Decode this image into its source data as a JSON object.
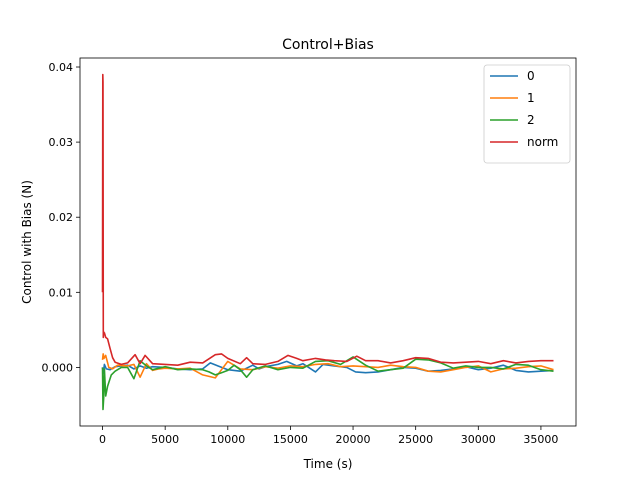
{
  "chart_data": {
    "type": "line",
    "title": "Control+Bias",
    "xlabel": "Time (s)",
    "ylabel": "Control with Bias (N)",
    "xlim": [
      -1800,
      37800
    ],
    "ylim": [
      -0.0078,
      0.0412
    ],
    "xticks": [
      0,
      5000,
      10000,
      15000,
      20000,
      25000,
      30000,
      35000
    ],
    "xtick_labels": [
      "0",
      "5000",
      "10000",
      "15000",
      "20000",
      "25000",
      "30000",
      "35000"
    ],
    "yticks": [
      0.0,
      0.01,
      0.02,
      0.03,
      0.04
    ],
    "ytick_labels": [
      "0.000",
      "0.01",
      "0.02",
      "0.03",
      "0.04"
    ],
    "grid": false,
    "legend": "top-right",
    "series": [
      {
        "name": "0",
        "color": "#1f77b4",
        "x": [
          0,
          60,
          150,
          300,
          600,
          1000,
          1500,
          2000,
          2500,
          3000,
          3500,
          4000,
          5000,
          6000,
          7000,
          8000,
          8600,
          9200,
          10000,
          11000,
          12000,
          12500,
          13000,
          14000,
          14700,
          15500,
          16000,
          17000,
          17600,
          18500,
          19500,
          20200,
          21000,
          22000,
          23000,
          24000,
          25000,
          26000,
          27000,
          28000,
          29000,
          30000,
          31000,
          32000,
          33000,
          34000,
          35000,
          36000
        ],
        "y": [
          0.0,
          -0.0008,
          0.0004,
          -0.0002,
          -0.0003,
          0.0001,
          0.0002,
          0.0003,
          -0.0002,
          0.0002,
          -0.0001,
          0.0001,
          0.0,
          -0.0002,
          -0.0003,
          -0.0002,
          0.0006,
          0.0002,
          -0.0003,
          -0.0005,
          0.0003,
          -0.0002,
          0.0001,
          0.0004,
          0.0008,
          0.0002,
          0.0005,
          -0.0006,
          0.0004,
          0.0002,
          0.0,
          -0.0006,
          -0.0007,
          -0.0006,
          -0.0003,
          0.0,
          -0.0001,
          -0.0005,
          -0.0004,
          -0.0002,
          0.0001,
          -0.0003,
          -0.0001,
          0.0003,
          -0.0004,
          -0.0006,
          -0.0005,
          -0.0004
        ]
      },
      {
        "name": "1",
        "color": "#ff7f0e",
        "x": [
          0,
          50,
          120,
          250,
          500,
          800,
          1200,
          2000,
          2500,
          3000,
          3500,
          4000,
          4500,
          5000,
          6000,
          7000,
          8000,
          9000,
          9500,
          10000,
          11000,
          12000,
          13000,
          14000,
          15000,
          16000,
          17000,
          18000,
          19000,
          20000,
          21000,
          22000,
          23000,
          24000,
          25000,
          26000,
          27000,
          28000,
          29000,
          30000,
          31000,
          32000,
          33000,
          34000,
          35000,
          36000
        ],
        "y": [
          0.001,
          0.0018,
          0.0012,
          0.0016,
          0.0,
          -0.0002,
          0.0003,
          0.0002,
          0.0004,
          -0.0013,
          0.0005,
          -0.0004,
          -0.0002,
          -0.0001,
          -0.0002,
          -0.0001,
          -0.001,
          -0.0014,
          -0.0003,
          0.0008,
          -0.0002,
          -0.0003,
          0.0001,
          -0.0001,
          0.0002,
          0.0001,
          0.0004,
          0.0005,
          0.0001,
          0.0002,
          0.0001,
          0.0,
          0.0003,
          0.0001,
          0.0,
          -0.0005,
          -0.0006,
          -0.0003,
          0.0,
          0.0002,
          -0.0006,
          -0.0002,
          -0.0001,
          0.0001,
          0.0002,
          -0.0003
        ]
      },
      {
        "name": "2",
        "color": "#2ca02c",
        "x": [
          0,
          40,
          90,
          150,
          250,
          400,
          700,
          1000,
          1500,
          2000,
          2500,
          3000,
          3500,
          4000,
          5000,
          6000,
          7000,
          8000,
          8500,
          9000,
          9500,
          10000,
          10500,
          11000,
          11500,
          12000,
          13000,
          14000,
          15000,
          16000,
          17000,
          18000,
          19000,
          20000,
          21000,
          22000,
          23000,
          24000,
          25000,
          26000,
          27000,
          28000,
          29000,
          30000,
          31000,
          32000,
          33000,
          34000,
          35000,
          36000
        ],
        "y": [
          0.0,
          -0.0056,
          -0.004,
          -0.0002,
          -0.0038,
          -0.0025,
          -0.001,
          -0.0005,
          0.0,
          0.0,
          -0.0015,
          0.0009,
          0.0002,
          -0.0003,
          0.0001,
          -0.0003,
          -0.0002,
          -0.0003,
          -0.0006,
          -0.001,
          -0.0007,
          -0.0004,
          0.0003,
          -0.0003,
          -0.0013,
          -0.0003,
          0.0002,
          -0.0003,
          0.0,
          -0.0001,
          0.0008,
          0.0009,
          0.0004,
          0.0014,
          0.0003,
          -0.0005,
          -0.0003,
          -0.0001,
          0.0011,
          0.001,
          0.0006,
          -0.0001,
          0.0002,
          0.0,
          0.0,
          -0.0002,
          0.0004,
          0.0003,
          -0.0003,
          -0.0005
        ]
      },
      {
        "name": "norm",
        "color": "#d62728",
        "x": [
          0,
          20,
          40,
          60,
          80,
          100,
          150,
          250,
          400,
          600,
          800,
          1000,
          1500,
          2000,
          2600,
          3000,
          3400,
          4000,
          5000,
          6000,
          7000,
          8000,
          9000,
          9500,
          10000,
          11000,
          11500,
          12000,
          13000,
          14000,
          14800,
          15500,
          16000,
          17000,
          17800,
          18500,
          19500,
          20300,
          21000,
          22000,
          23000,
          24000,
          25000,
          26000,
          27000,
          28000,
          29000,
          30000,
          31000,
          32000,
          33000,
          34000,
          35000,
          36000
        ],
        "y": [
          0.01,
          0.039,
          0.038,
          0.004,
          0.0048,
          0.0045,
          0.0046,
          0.004,
          0.0038,
          0.0025,
          0.0013,
          0.0007,
          0.0004,
          0.0006,
          0.0017,
          0.0005,
          0.0016,
          0.0005,
          0.0004,
          0.0003,
          0.0007,
          0.0006,
          0.0017,
          0.0018,
          0.0012,
          0.0005,
          0.0013,
          0.0005,
          0.0004,
          0.0008,
          0.0016,
          0.0012,
          0.0009,
          0.0012,
          0.001,
          0.0009,
          0.0008,
          0.0015,
          0.0009,
          0.0009,
          0.0006,
          0.0009,
          0.0013,
          0.0012,
          0.0007,
          0.0006,
          0.0007,
          0.0008,
          0.0005,
          0.0009,
          0.0006,
          0.0008,
          0.0009,
          0.0009
        ]
      }
    ]
  }
}
